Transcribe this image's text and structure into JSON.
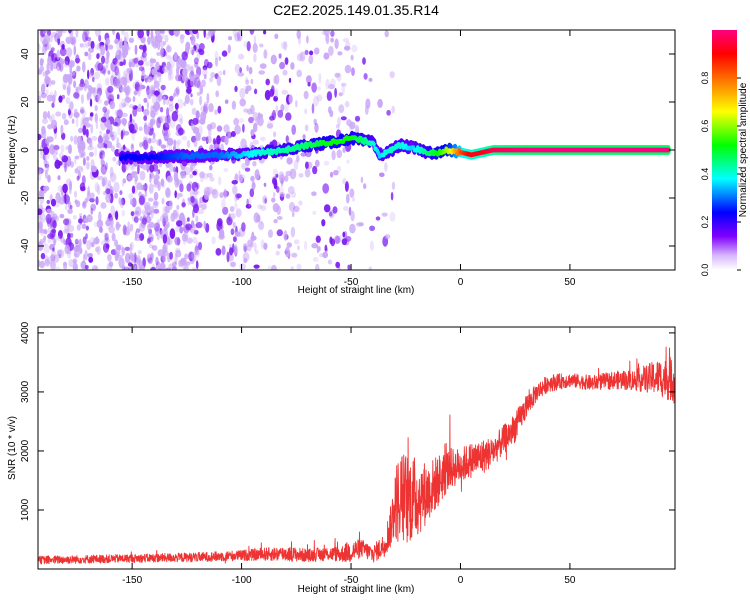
{
  "figure_title": "C2E2.2025.149.01.35.R14",
  "chart_data": [
    {
      "type": "heatmap",
      "xlabel": "Height of straight line (km)",
      "ylabel": "Frequency (Hz)",
      "xlim": [
        -193,
        98
      ],
      "ylim": [
        -50,
        50
      ],
      "x_ticks": [
        -150,
        -100,
        -50,
        0,
        50
      ],
      "y_ticks": [
        -40,
        -20,
        0,
        20,
        40
      ],
      "colorbar": {
        "label": "Normalized spectral amplitude",
        "range": [
          0,
          1
        ],
        "ticks": [
          0,
          0.2,
          0.4,
          0.6,
          0.8
        ],
        "tick_labels": [
          "0.0",
          "0.2",
          "0.4",
          "0.6",
          "0.8"
        ],
        "colormap": [
          "#ffffff",
          "#8000ff",
          "#0000ff",
          "#00ffff",
          "#00ff00",
          "#ffff00",
          "#ff8000",
          "#ff0000",
          "#ff0080"
        ]
      },
      "signal_trace": {
        "x": [
          -155,
          -140,
          -125,
          -110,
          -100,
          -90,
          -80,
          -70,
          -60,
          -50,
          -45,
          -40,
          -37,
          -33,
          -28,
          -22,
          -15,
          -10,
          -5,
          0,
          5,
          10,
          15,
          30,
          50,
          70,
          95
        ],
        "frequency": [
          -3,
          -3,
          -2.5,
          -2,
          -2,
          -1,
          0,
          2,
          3,
          5,
          4,
          3,
          -2,
          -1,
          2,
          1,
          -1,
          -1,
          0,
          -1,
          -2,
          -1,
          0,
          0,
          0,
          0,
          0
        ],
        "amplitude": [
          0.25,
          0.25,
          0.3,
          0.3,
          0.35,
          0.4,
          0.42,
          0.45,
          0.5,
          0.5,
          0.45,
          0.4,
          0.35,
          0.4,
          0.4,
          0.35,
          0.45,
          0.5,
          0.6,
          0.8,
          0.9,
          0.9,
          0.95,
          1.0,
          1.0,
          1.0,
          1.0
        ]
      },
      "noise_region": {
        "x_range": [
          -193,
          -40
        ],
        "frequency_range": [
          -50,
          50
        ],
        "amplitude_range": [
          0.05,
          0.2
        ]
      }
    },
    {
      "type": "line",
      "xlabel": "Height of straight line (km)",
      "ylabel": "SNR (10 * v/v)",
      "xlim": [
        -193,
        98
      ],
      "ylim": [
        0,
        4100
      ],
      "x_ticks": [
        -150,
        -100,
        -50,
        0,
        50
      ],
      "y_ticks": [
        1000,
        2000,
        3000,
        4000
      ],
      "color": "#ee3333",
      "series": [
        {
          "x": [
            -193,
            -150,
            -120,
            -100,
            -90,
            -80,
            -70,
            -60,
            -55,
            -50,
            -45,
            -40,
            -35,
            -32,
            -30,
            -28,
            -25,
            -20,
            -15,
            -10,
            -5,
            0,
            5,
            10,
            15,
            20,
            25,
            30,
            35,
            40,
            50,
            60,
            70,
            80,
            90,
            98
          ],
          "values": [
            150,
            180,
            200,
            230,
            250,
            260,
            230,
            260,
            250,
            300,
            350,
            250,
            400,
            700,
            1100,
            1200,
            1200,
            1200,
            1300,
            1500,
            1700,
            1750,
            1850,
            1900,
            2000,
            2200,
            2400,
            2750,
            3000,
            3150,
            3200,
            3150,
            3200,
            3200,
            3250,
            3200
          ],
          "noise_amplitude": [
            70,
            70,
            80,
            90,
            110,
            130,
            110,
            120,
            130,
            200,
            150,
            150,
            200,
            350,
            600,
            800,
            800,
            700,
            500,
            450,
            350,
            300,
            300,
            300,
            250,
            250,
            250,
            200,
            150,
            150,
            120,
            130,
            150,
            180,
            300,
            400
          ]
        }
      ]
    }
  ]
}
